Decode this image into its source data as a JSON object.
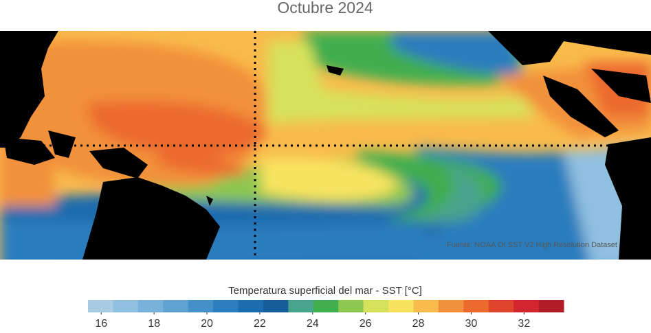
{
  "title": "Octubre 2024",
  "source": "Fuente: NOAA OI SST V2 High Resolution Dataset",
  "colorbar": {
    "label": "Temperatura superficial del mar - SST  [°C]",
    "clim": [
      15.5,
      33.5
    ],
    "colors": [
      "#a9cce4",
      "#90c0e0",
      "#78b2da",
      "#5ea2d2",
      "#4590c8",
      "#2c7dbd",
      "#1d6cae",
      "#155d98",
      "#4aa38c",
      "#41ae50",
      "#8cc751",
      "#d7e25c",
      "#f8e35f",
      "#f9bb4b",
      "#f2913b",
      "#ec6a2d",
      "#de432b",
      "#d22530",
      "#b11d27"
    ],
    "ticks": [
      16,
      18,
      20,
      22,
      24,
      26,
      28,
      30,
      32
    ]
  }
}
